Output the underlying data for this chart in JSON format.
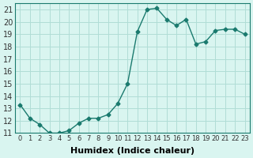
{
  "x": [
    0,
    1,
    2,
    3,
    4,
    5,
    6,
    7,
    8,
    9,
    10,
    11,
    12,
    13,
    14,
    15,
    16,
    17,
    18,
    19,
    20,
    21,
    22,
    23
  ],
  "y": [
    13.3,
    12.2,
    11.7,
    11.0,
    11.0,
    11.2,
    11.8,
    12.2,
    12.2,
    12.5,
    13.4,
    15.0,
    19.2,
    21.0,
    21.1,
    20.2,
    19.7,
    20.2,
    18.2,
    18.4,
    19.3,
    19.4,
    19.4,
    19.0
  ],
  "line_color": "#1a7a6e",
  "marker": "D",
  "marker_size": 2.5,
  "bg_color": "#d9f5f0",
  "grid_color": "#b0ddd6",
  "xlabel": "Humidex (Indice chaleur)",
  "ylabel": "",
  "ylim": [
    11,
    21.5
  ],
  "xlim": [
    -0.5,
    23.5
  ],
  "yticks": [
    11,
    12,
    13,
    14,
    15,
    16,
    17,
    18,
    19,
    20,
    21
  ],
  "xticks": [
    0,
    1,
    2,
    3,
    4,
    5,
    6,
    7,
    8,
    9,
    10,
    11,
    12,
    13,
    14,
    15,
    16,
    17,
    18,
    19,
    20,
    21,
    22,
    23
  ],
  "xtick_labels": [
    "0",
    "1",
    "2",
    "3",
    "4",
    "5",
    "6",
    "7",
    "8",
    "9",
    "10",
    "11",
    "12",
    "13",
    "14",
    "15",
    "16",
    "17",
    "18",
    "19",
    "20",
    "21",
    "22",
    "23"
  ],
  "font_size": 7,
  "xlabel_fontsize": 8
}
